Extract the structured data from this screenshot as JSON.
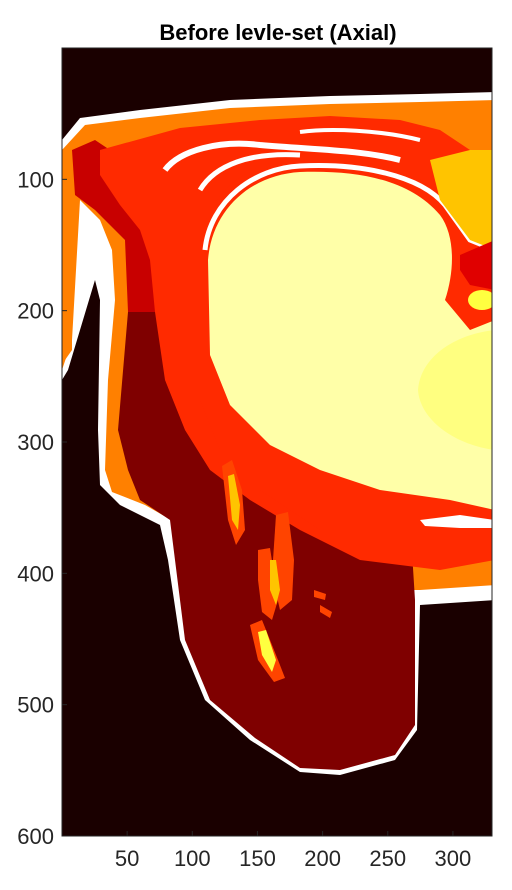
{
  "chart_data": {
    "type": "heatmap",
    "title": "Before levle-set (Axial)",
    "colormap": "hot",
    "xlim": [
      0,
      330
    ],
    "ylim": [
      600,
      0
    ],
    "xticks": [
      50,
      100,
      150,
      200,
      250,
      300
    ],
    "yticks": [
      100,
      200,
      300,
      400,
      500,
      600
    ],
    "grid": false,
    "colors": {
      "background": "#1a0000",
      "boundary": "#ffffff",
      "outer_layer": "#ff8000",
      "muscle": "#ff2a00",
      "deep_red": "#c80000",
      "dark_region": "#7f0000",
      "organ": "#ffffa8",
      "organ_inner": "#ffff80",
      "yellow_orange": "#ffc400",
      "bright_yellow": "#ffff40"
    }
  }
}
